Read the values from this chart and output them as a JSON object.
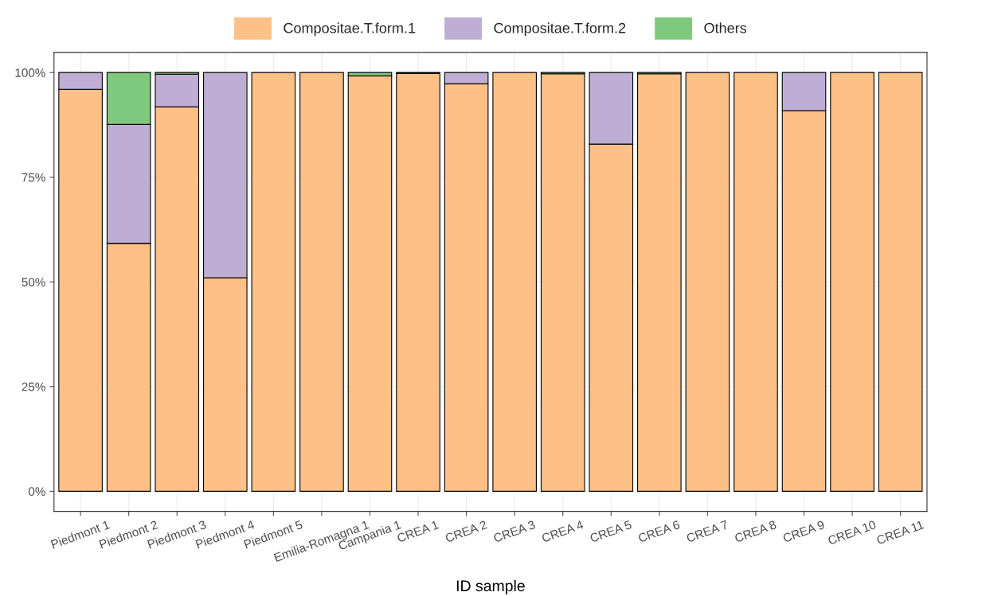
{
  "chart_data": {
    "type": "bar",
    "stacked": true,
    "xlabel": "ID sample",
    "categories": [
      "Piedmont 1",
      "Piedmont 2",
      "Piedmont 3",
      "Piedmont 4",
      "Piedmont 5",
      "Emilia-Romagna 1",
      "Campania 1",
      "CREA 1",
      "CREA 2",
      "CREA 3",
      "CREA 4",
      "CREA 5",
      "CREA 6",
      "CREA 7",
      "CREA 8",
      "CREA 9",
      "CREA 10",
      "CREA 11"
    ],
    "series": [
      {
        "name": "Compositae.T.form.1",
        "color": "#fdc086",
        "values": [
          96,
          59.2,
          91.8,
          51,
          100,
          100,
          99.2,
          99.8,
          97.3,
          100,
          99.7,
          82.9,
          99.7,
          100,
          100,
          90.9,
          100,
          100
        ]
      },
      {
        "name": "Compositae.T.form.2",
        "color": "#beaed4",
        "values": [
          4,
          28.4,
          7.8,
          49,
          null,
          null,
          null,
          null,
          2.7,
          null,
          null,
          17.1,
          null,
          null,
          null,
          9.1,
          null,
          null
        ]
      },
      {
        "name": "Others",
        "color": "#7fc97f",
        "values": [
          null,
          12.4,
          0.4,
          null,
          null,
          null,
          0.8,
          0.2,
          null,
          null,
          0.3,
          null,
          0.3,
          null,
          null,
          null,
          null,
          null
        ]
      }
    ],
    "ylim": [
      -4.8,
      104.8
    ],
    "yticks": [
      {
        "value": 0,
        "label": "0%"
      },
      {
        "value": 25,
        "label": "25%"
      },
      {
        "value": 50,
        "label": "50%"
      },
      {
        "value": 75,
        "label": "75%"
      },
      {
        "value": 100,
        "label": "100%"
      }
    ],
    "grid": true,
    "legend": "top"
  }
}
